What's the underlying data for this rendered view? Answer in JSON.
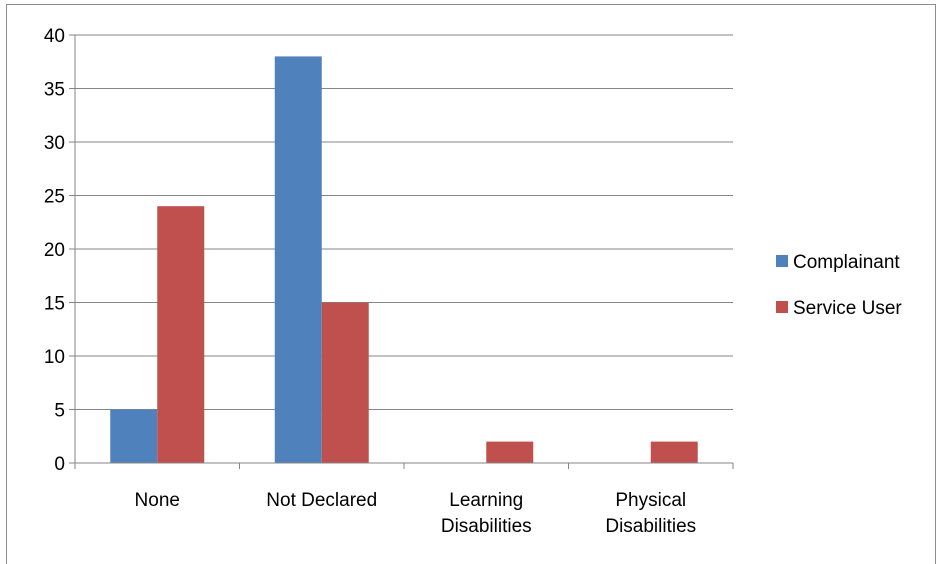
{
  "chart_data": {
    "type": "bar",
    "categories": [
      [
        "None"
      ],
      [
        "Not Declared"
      ],
      [
        "Learning",
        "Disabilities"
      ],
      [
        "Physical",
        "Disabilities"
      ]
    ],
    "series": [
      {
        "name": "Complainant",
        "values": [
          5,
          38,
          0,
          0
        ],
        "color": "#4f81bd"
      },
      {
        "name": "Service User",
        "values": [
          24,
          15,
          2,
          2
        ],
        "color": "#c0504d"
      }
    ],
    "ylim": [
      0,
      40
    ],
    "yticks": [
      0,
      5,
      10,
      15,
      20,
      25,
      30,
      35,
      40
    ],
    "grid": true,
    "legend_position": "right"
  }
}
